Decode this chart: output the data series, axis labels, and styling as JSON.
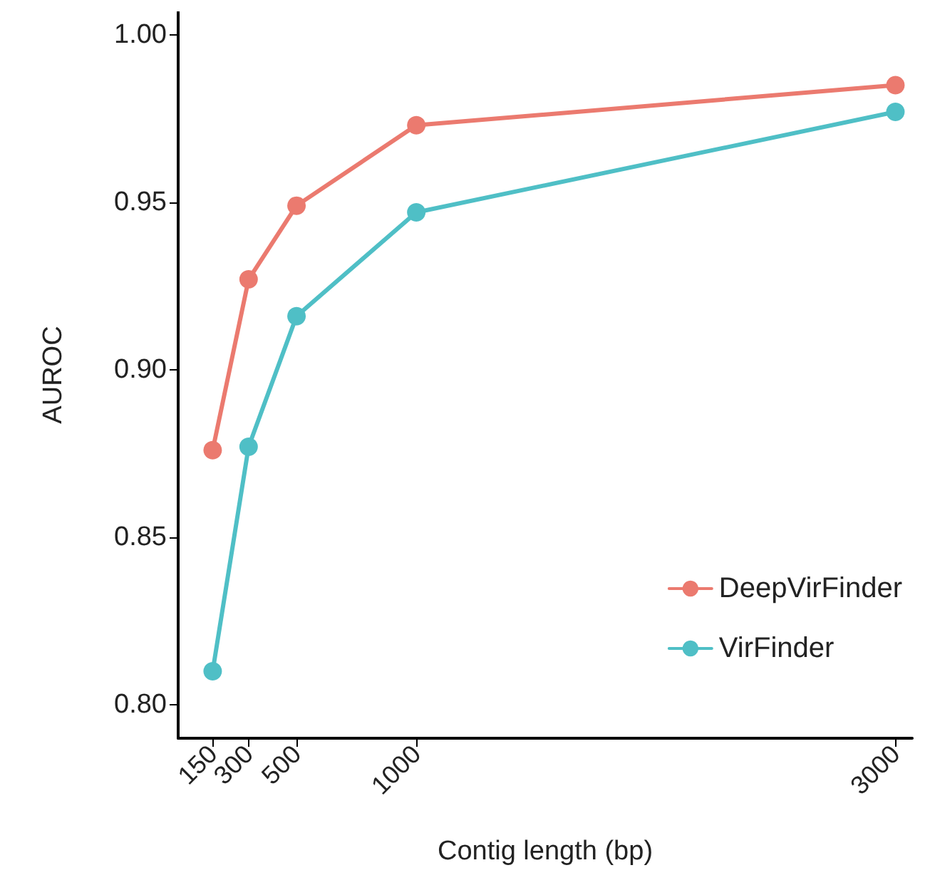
{
  "chart_data": {
    "type": "line",
    "xlabel": "Contig length (bp)",
    "ylabel": "AUROC",
    "x": [
      150,
      300,
      500,
      1000,
      3000
    ],
    "series": [
      {
        "name": "DeepVirFinder",
        "color": "#eb7a6f",
        "values": [
          0.876,
          0.927,
          0.949,
          0.973,
          0.985
        ]
      },
      {
        "name": "VirFinder",
        "color": "#4fbfc6",
        "values": [
          0.81,
          0.877,
          0.916,
          0.947,
          0.977
        ]
      }
    ],
    "xlim": [
      6,
      3070
    ],
    "xticks": [
      150,
      300,
      500,
      1000,
      3000
    ],
    "ylim": [
      0.79,
      1.007
    ],
    "yticks": [
      {
        "value": 0.8,
        "label": "0.80"
      },
      {
        "value": 0.85,
        "label": "0.85"
      },
      {
        "value": 0.9,
        "label": "0.90"
      },
      {
        "value": 0.95,
        "label": "0.95"
      },
      {
        "value": 1.0,
        "label": "1.00"
      }
    ],
    "grid": false,
    "legend": "bottom right",
    "marker": "circle",
    "line_style": "solid"
  }
}
